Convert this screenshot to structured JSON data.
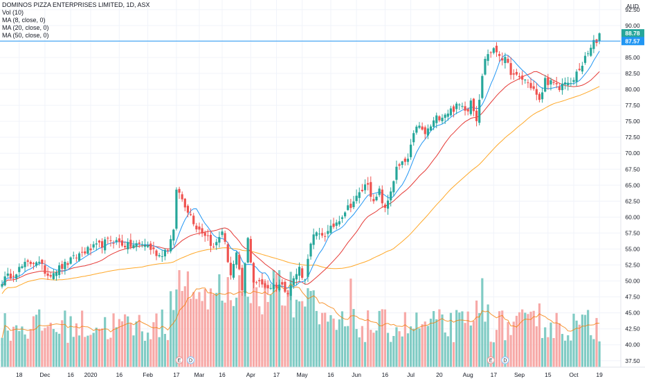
{
  "title": "DOMINOS PIZZA ENTERPRISES LIMITED, 1D, ASX",
  "indicators": [
    "Vol (10)",
    "MA (8, close, 0)",
    "MA (20, close, 0)",
    "MA (50, close, 0)"
  ],
  "currency": "AUD",
  "colors": {
    "up": "#26a69a",
    "down": "#ef5350",
    "vol_up": "#80cbc4",
    "vol_down": "#f7a9a7",
    "ma8": "#2196f3",
    "ma20": "#e53935",
    "ma50": "#ffa726",
    "vol_ma": "#f57c00",
    "price_line": "#2196f3",
    "tag_current": "#26a69a",
    "tag_line": "#2196f3",
    "grid": "#f0f3fa"
  },
  "price_tags": [
    {
      "value": "88.78",
      "price": 88.78,
      "color": "current"
    },
    {
      "value": "87.57",
      "price": 87.57,
      "color": "line"
    }
  ],
  "events": [
    {
      "label": "E",
      "x_label": "Feb"
    },
    {
      "label": "D",
      "x_label": "Feb"
    },
    {
      "label": "E",
      "x_label": "Aug"
    },
    {
      "label": "D",
      "x_label": "Aug"
    }
  ],
  "chart_data": {
    "type": "candlestick",
    "title": "DOMINOS PIZZA ENTERPRISES LIMITED, 1D, ASX",
    "y_axis": {
      "ticks": [
        "37.50",
        "40.00",
        "42.50",
        "45.00",
        "47.50",
        "50.00",
        "52.50",
        "55.00",
        "57.50",
        "60.00",
        "62.50",
        "65.00",
        "67.50",
        "70.00",
        "72.50",
        "75.00",
        "77.50",
        "80.00",
        "82.50",
        "85.00",
        "87.50",
        "90.00",
        "92.50"
      ],
      "range": [
        36.5,
        94
      ],
      "label": "AUD"
    },
    "x_axis": {
      "ticks": [
        "18",
        "Dec",
        "16",
        "2020",
        "16",
        "Feb",
        "17",
        "Mar",
        "16",
        "Apr",
        "17",
        "May",
        "16",
        "Jun",
        "16",
        "Jul",
        "20",
        "Aug",
        "17",
        "Sep",
        "15",
        "Oct",
        "19"
      ]
    },
    "waypoints": [
      [
        0,
        50.0
      ],
      [
        8,
        52.5
      ],
      [
        12,
        53.2
      ],
      [
        16,
        51.0
      ],
      [
        22,
        52.5
      ],
      [
        28,
        54.5
      ],
      [
        34,
        55.5
      ],
      [
        38,
        56.5
      ],
      [
        44,
        55.5
      ],
      [
        50,
        55.8
      ],
      [
        55,
        54.0
      ],
      [
        58,
        55.2
      ],
      [
        60,
        57.5
      ],
      [
        61,
        64.5
      ],
      [
        64,
        62.0
      ],
      [
        68,
        58.5
      ],
      [
        72,
        57.0
      ],
      [
        74,
        55.0
      ],
      [
        77,
        58.0
      ],
      [
        80,
        51.0
      ],
      [
        82,
        54.0
      ],
      [
        84,
        48.5
      ],
      [
        86,
        56.5
      ],
      [
        88,
        50.0
      ],
      [
        93,
        49.0
      ],
      [
        97,
        49.5
      ],
      [
        100,
        48.5
      ],
      [
        104,
        52.0
      ],
      [
        106,
        50.0
      ],
      [
        107,
        54.0
      ],
      [
        109,
        57.0
      ],
      [
        114,
        57.5
      ],
      [
        120,
        61.0
      ],
      [
        124,
        63.0
      ],
      [
        128,
        65.5
      ],
      [
        130,
        62.0
      ],
      [
        132,
        64.0
      ],
      [
        134,
        61.0
      ],
      [
        138,
        67.5
      ],
      [
        142,
        69.0
      ],
      [
        145,
        74.5
      ],
      [
        148,
        73.0
      ],
      [
        152,
        75.5
      ],
      [
        156,
        76.5
      ],
      [
        160,
        77.5
      ],
      [
        163,
        77.0
      ],
      [
        164,
        78.5
      ],
      [
        166,
        75.5
      ],
      [
        169,
        85.0
      ],
      [
        171,
        86.0
      ],
      [
        173,
        86.0
      ],
      [
        176,
        84.5
      ],
      [
        179,
        82.0
      ],
      [
        183,
        81.5
      ],
      [
        186,
        80.0
      ],
      [
        188,
        78.0
      ],
      [
        190,
        81.5
      ],
      [
        192,
        81.0
      ],
      [
        195,
        80.0
      ],
      [
        197,
        81.5
      ],
      [
        199,
        80.5
      ],
      [
        201,
        82.5
      ],
      [
        203,
        84.0
      ],
      [
        205,
        85.5
      ],
      [
        207,
        87.5
      ],
      [
        209,
        88.78
      ]
    ],
    "series": [
      {
        "name": "Vol (10)",
        "type": "bar"
      },
      {
        "name": "MA (8, close, 0)",
        "type": "line"
      },
      {
        "name": "MA (20, close, 0)",
        "type": "line"
      },
      {
        "name": "MA (50, close, 0)",
        "type": "line"
      }
    ],
    "last_price": 88.78,
    "previous_close": 87.57,
    "bars": 210
  }
}
